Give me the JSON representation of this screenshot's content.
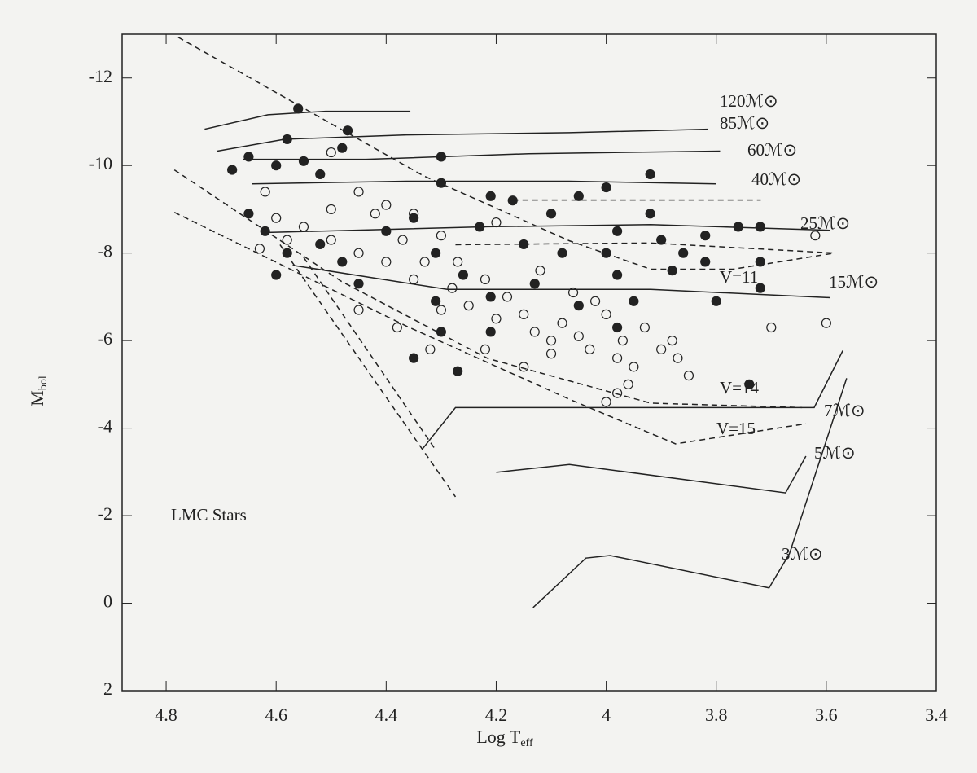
{
  "chart_data": {
    "type": "scatter",
    "x_label": "Log T",
    "x_label_sub": "eff",
    "y_label": "M",
    "y_label_sub": "bol",
    "xlim": [
      4.88,
      3.4
    ],
    "ylim": [
      2,
      -13
    ],
    "xticks": [
      4.8,
      4.6,
      4.4,
      4.2,
      4,
      3.8,
      3.6,
      3.4
    ],
    "yticks": [
      -12,
      -10,
      -8,
      -6,
      -4,
      -2,
      0,
      2
    ],
    "annotations": [
      "LMC Stars",
      "120ℳ⊙",
      "85ℳ⊙",
      "60ℳ⊙",
      "40ℳ⊙",
      "25ℳ⊙",
      "15ℳ⊙",
      "7ℳ⊙",
      "5ℳ⊙",
      "3ℳ⊙",
      "V=11",
      "V=14",
      "V=15"
    ],
    "series": [
      {
        "type": "points",
        "marker": "filled",
        "color": "#222222",
        "x": [
          4.56,
          4.47,
          4.58,
          4.68,
          4.65,
          4.6,
          4.55,
          4.52,
          4.48,
          4.3,
          4.3,
          4.21,
          4.05,
          3.92,
          4.65,
          4.62,
          4.58,
          4.52,
          4.48,
          4.45,
          4.6,
          4.4,
          4.35,
          4.31,
          4.31,
          4.3,
          4.26,
          4.23,
          4.21,
          4.21,
          4.15,
          4.13,
          4.08,
          4.05,
          3.98,
          3.98,
          3.98,
          3.95,
          3.92,
          3.9,
          3.88,
          3.86,
          3.82,
          3.82,
          3.8,
          3.76,
          3.72,
          3.72,
          3.72,
          3.74,
          4.35,
          4.27,
          4.17,
          4.1,
          4.0,
          4.0
        ],
        "y": [
          -11.3,
          -10.8,
          -10.6,
          -9.9,
          -10.2,
          -10.0,
          -10.1,
          -9.8,
          -10.4,
          -10.2,
          -9.6,
          -9.3,
          -9.3,
          -9.8,
          -8.9,
          -8.5,
          -8.0,
          -8.2,
          -7.8,
          -7.3,
          -7.5,
          -8.5,
          -8.8,
          -8.0,
          -6.9,
          -6.2,
          -7.5,
          -8.6,
          -7.0,
          -6.2,
          -8.2,
          -7.3,
          -8.0,
          -6.8,
          -8.5,
          -7.5,
          -6.3,
          -6.9,
          -8.9,
          -8.3,
          -7.6,
          -8.0,
          -8.4,
          -7.8,
          -6.9,
          -8.6,
          -8.6,
          -7.8,
          -7.2,
          -5.0,
          -5.6,
          -5.3,
          -9.2,
          -8.9,
          -9.5,
          -8.0
        ]
      },
      {
        "type": "points",
        "marker": "open",
        "color": "#222222",
        "x": [
          4.62,
          4.6,
          4.55,
          4.5,
          4.45,
          4.5,
          4.42,
          4.4,
          4.37,
          4.35,
          4.33,
          4.3,
          4.28,
          4.25,
          4.22,
          4.2,
          4.18,
          4.15,
          4.13,
          4.1,
          4.1,
          4.08,
          4.05,
          4.03,
          4.0,
          3.98,
          3.97,
          3.95,
          3.93,
          3.9,
          3.88,
          3.87,
          4.5,
          4.45,
          4.4,
          4.35,
          4.3,
          4.27,
          4.2,
          4.12,
          4.06,
          4.02,
          4.0,
          3.98,
          4.15,
          4.45,
          4.38,
          4.58,
          4.63,
          3.7,
          3.6,
          3.62,
          3.85,
          3.96,
          4.22,
          4.32
        ],
        "y": [
          -9.4,
          -8.8,
          -8.6,
          -8.3,
          -8.0,
          -9.0,
          -8.9,
          -7.8,
          -8.3,
          -7.4,
          -7.8,
          -8.4,
          -7.2,
          -6.8,
          -7.4,
          -6.5,
          -7.0,
          -6.6,
          -6.2,
          -6.0,
          -5.7,
          -6.4,
          -6.1,
          -5.8,
          -6.6,
          -5.6,
          -6.0,
          -5.4,
          -6.3,
          -5.8,
          -6.0,
          -5.6,
          -10.3,
          -9.4,
          -9.1,
          -8.9,
          -6.7,
          -7.8,
          -8.7,
          -7.6,
          -7.1,
          -6.9,
          -4.6,
          -4.8,
          -5.4,
          -6.7,
          -6.3,
          -8.3,
          -8.1,
          -6.3,
          -6.4,
          -8.4,
          -5.2,
          -5.0,
          -5.8,
          -5.8
        ]
      },
      {
        "type": "line",
        "style": "solid",
        "color": "#222222",
        "x": [
          4.73,
          4.615,
          4.51,
          4.356
        ],
        "y": [
          -10.83,
          -11.16,
          -11.24,
          -11.24
        ]
      },
      {
        "type": "line",
        "style": "solid",
        "color": "#222222",
        "x": [
          4.707,
          4.585,
          4.363,
          4.067,
          3.815
        ],
        "y": [
          -10.33,
          -10.6,
          -10.7,
          -10.75,
          -10.83
        ]
      },
      {
        "type": "line",
        "style": "solid",
        "color": "#222222",
        "x": [
          4.66,
          4.437,
          4.141,
          3.793
        ],
        "y": [
          -10.14,
          -10.14,
          -10.27,
          -10.33
        ]
      },
      {
        "type": "line",
        "style": "solid",
        "color": "#222222",
        "x": [
          4.644,
          4.363,
          4.067,
          3.8
        ],
        "y": [
          -9.58,
          -9.64,
          -9.64,
          -9.58
        ]
      },
      {
        "type": "line",
        "style": "dashed",
        "color": "#222222",
        "x": [
          4.17,
          3.719
        ],
        "y": [
          -9.21,
          -9.21
        ]
      },
      {
        "type": "line",
        "style": "solid",
        "color": "#222222",
        "x": [
          4.615,
          4.215,
          3.919,
          3.593
        ],
        "y": [
          -8.47,
          -8.6,
          -8.65,
          -8.52
        ]
      },
      {
        "type": "line",
        "style": "dashed",
        "color": "#222222",
        "x": [
          4.274,
          3.919,
          3.585
        ],
        "y": [
          -8.19,
          -8.23,
          -8.0
        ]
      },
      {
        "type": "line",
        "style": "solid",
        "color": "#222222",
        "x": [
          4.57,
          4.289,
          3.919,
          3.593
        ],
        "y": [
          -7.72,
          -7.17,
          -7.17,
          -6.98
        ]
      },
      {
        "type": "line",
        "style": "dashed",
        "color": "#222222",
        "x": [
          4.778,
          4.333,
          4.067,
          3.919,
          3.77,
          3.585
        ],
        "y": [
          -12.93,
          -9.77,
          -8.28,
          -7.63,
          -7.63,
          -8.0
        ]
      },
      {
        "type": "line",
        "style": "dashed",
        "color": "#222222",
        "x": [
          4.785,
          4.481,
          4.215,
          3.919,
          3.644
        ],
        "y": [
          -9.9,
          -7.35,
          -5.59,
          -4.57,
          -4.47
        ]
      },
      {
        "type": "line",
        "style": "dashed",
        "color": "#222222",
        "x": [
          4.785,
          4.363,
          4.067,
          3.874,
          3.637
        ],
        "y": [
          -8.93,
          -6.33,
          -4.66,
          -3.64,
          -4.1
        ]
      },
      {
        "type": "line",
        "style": "solid",
        "color": "#222222",
        "x": [
          4.333,
          4.274,
          4.067,
          3.622,
          3.57
        ],
        "y": [
          -3.54,
          -4.47,
          -4.47,
          -4.47,
          -5.77
        ]
      },
      {
        "type": "line",
        "style": "solid",
        "color": "#222222",
        "x": [
          4.2,
          4.067,
          3.674,
          3.637
        ],
        "y": [
          -2.99,
          -3.17,
          -2.52,
          -3.36
        ]
      },
      {
        "type": "line",
        "style": "solid",
        "color": "#222222",
        "x": [
          4.133,
          4.037,
          3.993,
          3.704,
          3.667,
          3.563
        ],
        "y": [
          0.1,
          -1.03,
          -1.09,
          -0.35,
          -1.13,
          -5.14
        ]
      },
      {
        "type": "line",
        "style": "dashed",
        "color": "#222222",
        "x": [
          4.593,
          4.274
        ],
        "y": [
          -8.19,
          -2.43
        ]
      },
      {
        "type": "line",
        "style": "dashed",
        "color": "#222222",
        "x": [
          4.55,
          4.31
        ],
        "y": [
          -7.9,
          -3.5
        ]
      }
    ]
  }
}
